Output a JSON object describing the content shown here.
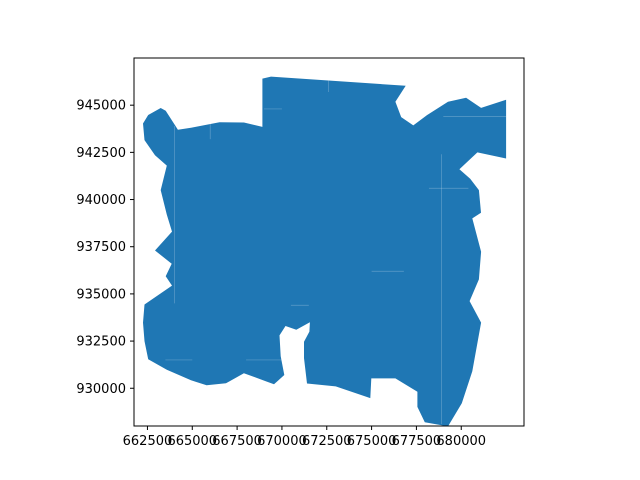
{
  "chart_data": {
    "type": "polygon-map",
    "title": "",
    "xlabel": "",
    "ylabel": "",
    "xlim": [
      661750,
      683500
    ],
    "ylim": [
      928000,
      947500
    ],
    "x_ticks": [
      662500,
      665000,
      667500,
      670000,
      672500,
      675000,
      677500,
      680000
    ],
    "x_tick_labels": [
      "662500",
      "665000",
      "667500",
      "670000",
      "672500",
      "675000",
      "677500",
      "680000"
    ],
    "y_ticks": [
      930000,
      932500,
      935000,
      937500,
      940000,
      942500,
      945000
    ],
    "y_tick_labels": [
      "930000",
      "932500",
      "935000",
      "937500",
      "940000",
      "942500",
      "945000"
    ],
    "grid": false,
    "fill_color": "#1f77b4",
    "outline": [
      [
        668908,
        946407
      ],
      [
        669391,
        946516
      ],
      [
        676900,
        946026
      ],
      [
        676328,
        945182
      ],
      [
        676650,
        944366
      ],
      [
        677324,
        943930
      ],
      [
        678089,
        944475
      ],
      [
        679259,
        945182
      ],
      [
        680271,
        945398
      ],
      [
        681110,
        944855
      ],
      [
        682501,
        945291
      ],
      [
        682501,
        942175
      ],
      [
        680900,
        942500
      ],
      [
        679900,
        941600
      ],
      [
        680500,
        941100
      ],
      [
        680983,
        940500
      ],
      [
        681100,
        939300
      ],
      [
        680619,
        939000
      ],
      [
        681110,
        937230
      ],
      [
        680983,
        935770
      ],
      [
        680468,
        934620
      ],
      [
        681110,
        933480
      ],
      [
        680619,
        930900
      ],
      [
        680033,
        929210
      ],
      [
        679259,
        927980
      ],
      [
        677965,
        928200
      ],
      [
        677555,
        929010
      ],
      [
        677555,
        929820
      ],
      [
        676328,
        930520
      ],
      [
        674986,
        930520
      ],
      [
        674930,
        929480
      ],
      [
        673000,
        930100
      ],
      [
        671400,
        930250
      ],
      [
        671230,
        931600
      ],
      [
        671230,
        932460
      ],
      [
        671530,
        933000
      ],
      [
        671560,
        933500
      ],
      [
        670800,
        933100
      ],
      [
        670200,
        933300
      ],
      [
        669865,
        932800
      ],
      [
        669930,
        931700
      ],
      [
        670130,
        930700
      ],
      [
        669560,
        930210
      ],
      [
        667880,
        930800
      ],
      [
        666880,
        930260
      ],
      [
        665800,
        930160
      ],
      [
        664930,
        930420
      ],
      [
        663580,
        930980
      ],
      [
        662540,
        931540
      ],
      [
        662338,
        932500
      ],
      [
        662250,
        933480
      ],
      [
        662338,
        934440
      ],
      [
        663870,
        935440
      ],
      [
        663520,
        935940
      ],
      [
        663850,
        936600
      ],
      [
        662920,
        937300
      ],
      [
        663870,
        938300
      ],
      [
        663580,
        939200
      ],
      [
        663240,
        940500
      ],
      [
        663580,
        941800
      ],
      [
        662920,
        942350
      ],
      [
        662338,
        943150
      ],
      [
        662250,
        944030
      ],
      [
        662540,
        944480
      ],
      [
        663240,
        944850
      ],
      [
        663520,
        944700
      ],
      [
        664200,
        943700
      ],
      [
        664930,
        943800
      ],
      [
        666520,
        944100
      ],
      [
        667880,
        944080
      ],
      [
        668908,
        943850
      ],
      [
        668908,
        945700
      ]
    ],
    "seams": [
      [
        [
          664000,
          943900
        ],
        [
          664000,
          934500
        ]
      ],
      [
        [
          663500,
          931500
        ],
        [
          665000,
          931500
        ]
      ],
      [
        [
          668000,
          931500
        ],
        [
          670000,
          931500
        ]
      ],
      [
        [
          670500,
          934400
        ],
        [
          671500,
          934400
        ]
      ],
      [
        [
          678900,
          942400
        ],
        [
          678900,
          928100
        ]
      ],
      [
        [
          678200,
          940600
        ],
        [
          680400,
          940600
        ]
      ],
      [
        [
          675000,
          936200
        ],
        [
          676800,
          936200
        ]
      ],
      [
        [
          669000,
          944800
        ],
        [
          670000,
          944800
        ]
      ],
      [
        [
          666000,
          944100
        ],
        [
          666000,
          943200
        ]
      ],
      [
        [
          672600,
          946300
        ],
        [
          672600,
          945700
        ]
      ],
      [
        [
          677200,
          945400
        ],
        [
          677200,
          944100
        ]
      ],
      [
        [
          679000,
          944400
        ],
        [
          682500,
          944400
        ]
      ]
    ]
  }
}
